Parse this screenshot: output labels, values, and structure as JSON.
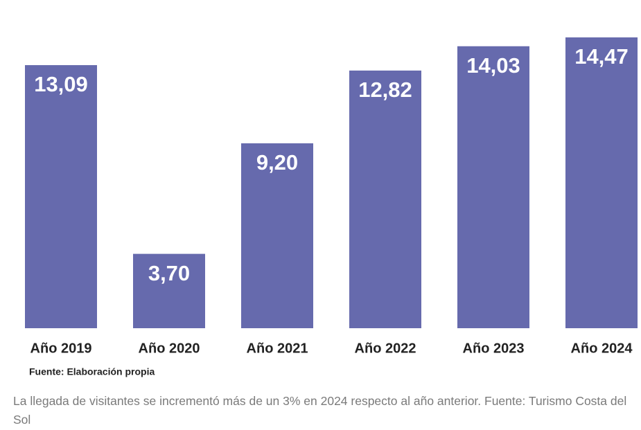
{
  "chart_data": {
    "type": "bar",
    "categories": [
      "Año 2019",
      "Año 2020",
      "Año 2021",
      "Año 2022",
      "Año 2023",
      "Año 2024"
    ],
    "values": [
      13.09,
      3.7,
      9.2,
      12.82,
      14.03,
      14.47
    ],
    "value_labels": [
      "13,09",
      "3,70",
      "9,20",
      "12,82",
      "14,03",
      "14,47"
    ],
    "color": "#666aad",
    "source": "Fuente: Elaboración propia"
  },
  "caption": "La llegada de visitantes se incrementó más de un 3% en 2024 respecto al año anterior. Fuente: Turismo Costa del Sol"
}
